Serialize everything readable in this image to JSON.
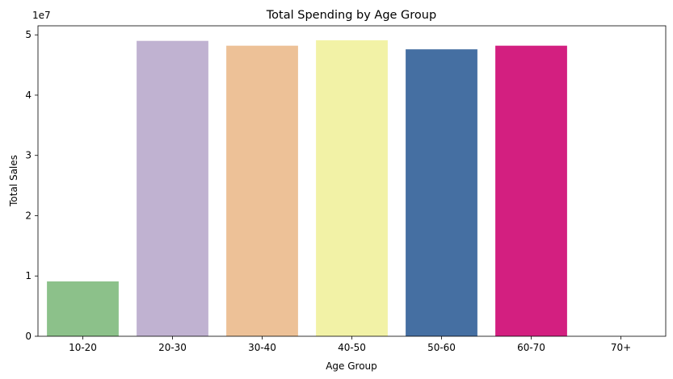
{
  "chart_data": {
    "type": "bar",
    "title": "Total Spending by Age Group",
    "xlabel": "Age Group",
    "ylabel": "Total Sales",
    "y_offset_label": "1e7",
    "categories": [
      "10-20",
      "20-30",
      "30-40",
      "40-50",
      "50-60",
      "60-70",
      "70+"
    ],
    "values": [
      9100000,
      49000000,
      48200000,
      49100000,
      47600000,
      48200000,
      0
    ],
    "colors": [
      "#8cc18a",
      "#c0b2d1",
      "#edc197",
      "#f2f2a6",
      "#456fa2",
      "#d31f80",
      "#8d5a3c"
    ],
    "ylim": [
      0,
      51500000
    ],
    "yticks": [
      0,
      1,
      2,
      3,
      4,
      5
    ],
    "ytick_labels": [
      "0",
      "1",
      "2",
      "3",
      "4",
      "5"
    ],
    "grid": false,
    "legend": "none"
  }
}
